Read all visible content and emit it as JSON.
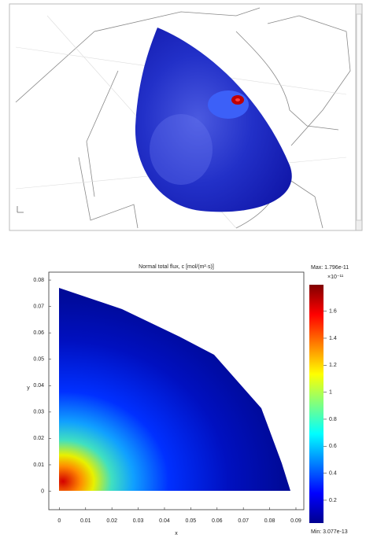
{
  "chart_data": {
    "type": "surface",
    "title": "Normal total flux, c [mol/(m²·s)]",
    "x_label": "x",
    "y_label": "y",
    "xlim": [
      -0.004,
      0.093
    ],
    "ylim": [
      -0.007,
      0.083
    ],
    "xticks": [
      0,
      0.01,
      0.02,
      0.03,
      0.04,
      0.05,
      0.06,
      0.07,
      0.08,
      0.09
    ],
    "yticks": [
      0,
      0.01,
      0.02,
      0.03,
      0.04,
      0.05,
      0.06,
      0.07,
      0.08
    ],
    "clim": [
      0.03077,
      1.796
    ],
    "cticks": [
      0.2,
      0.4,
      0.6,
      0.8,
      1,
      1.2,
      1.4,
      1.6
    ],
    "cscale_label": "×10⁻¹¹",
    "max_label": "Max: 1.796e-11",
    "min_label": "Min: 3.077e-13"
  }
}
